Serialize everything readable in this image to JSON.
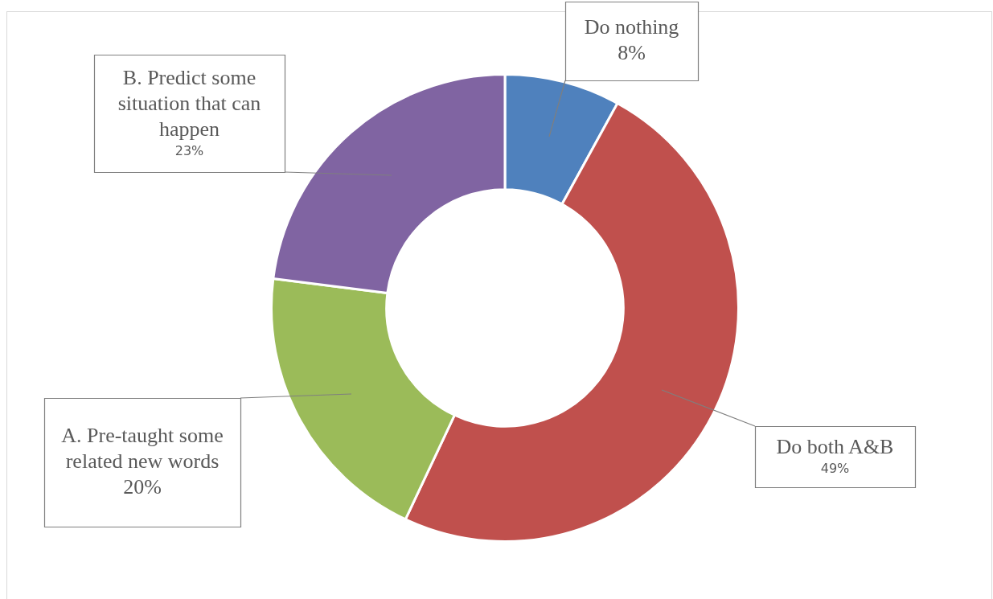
{
  "chart_data": {
    "type": "donut",
    "categories": [
      "Do nothing",
      "Do both A&B",
      "A. Pre-taught some related new words",
      "B. Predict some situation that can happen"
    ],
    "values": [
      8,
      49,
      20,
      23
    ],
    "colors": [
      "#4f81bd",
      "#c0504d",
      "#9bbb59",
      "#8064a2"
    ],
    "value_labels": [
      "8%",
      "49%",
      "20%",
      "23%"
    ],
    "legend": false
  }
}
